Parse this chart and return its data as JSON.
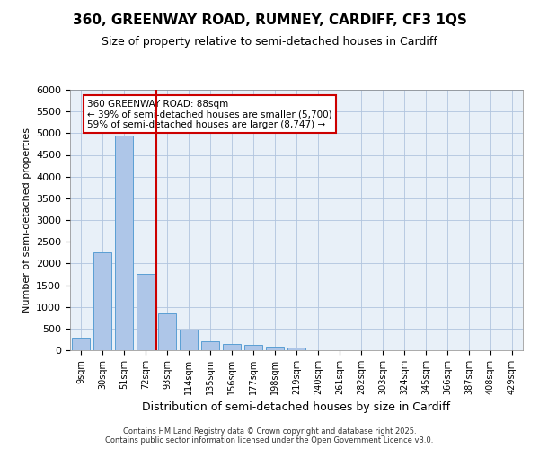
{
  "title_line1": "360, GREENWAY ROAD, RUMNEY, CARDIFF, CF3 1QS",
  "title_line2": "Size of property relative to semi-detached houses in Cardiff",
  "xlabel": "Distribution of semi-detached houses by size in Cardiff",
  "ylabel": "Number of semi-detached properties",
  "bin_labels": [
    "9sqm",
    "30sqm",
    "51sqm",
    "72sqm",
    "93sqm",
    "114sqm",
    "135sqm",
    "156sqm",
    "177sqm",
    "198sqm",
    "219sqm",
    "240sqm",
    "261sqm",
    "282sqm",
    "303sqm",
    "324sqm",
    "345sqm",
    "366sqm",
    "387sqm",
    "408sqm",
    "429sqm"
  ],
  "bar_heights": [
    280,
    2250,
    4950,
    1750,
    850,
    480,
    200,
    150,
    120,
    80,
    70,
    0,
    0,
    0,
    0,
    0,
    0,
    0,
    0,
    0,
    0
  ],
  "bar_color": "#aec6e8",
  "bar_edge_color": "#5a9fd4",
  "grid_color": "#b0c4de",
  "background_color": "#e8f0f8",
  "vline_x": 3.5,
  "vline_color": "#cc0000",
  "annotation_text": "360 GREENWAY ROAD: 88sqm\n← 39% of semi-detached houses are smaller (5,700)\n59% of semi-detached houses are larger (8,747) →",
  "annotation_box_color": "#ffffff",
  "annotation_box_edge_color": "#cc0000",
  "footer_text": "Contains HM Land Registry data © Crown copyright and database right 2025.\nContains public sector information licensed under the Open Government Licence v3.0.",
  "ylim": [
    0,
    6000
  ],
  "yticks": [
    0,
    500,
    1000,
    1500,
    2000,
    2500,
    3000,
    3500,
    4000,
    4500,
    5000,
    5500,
    6000
  ]
}
